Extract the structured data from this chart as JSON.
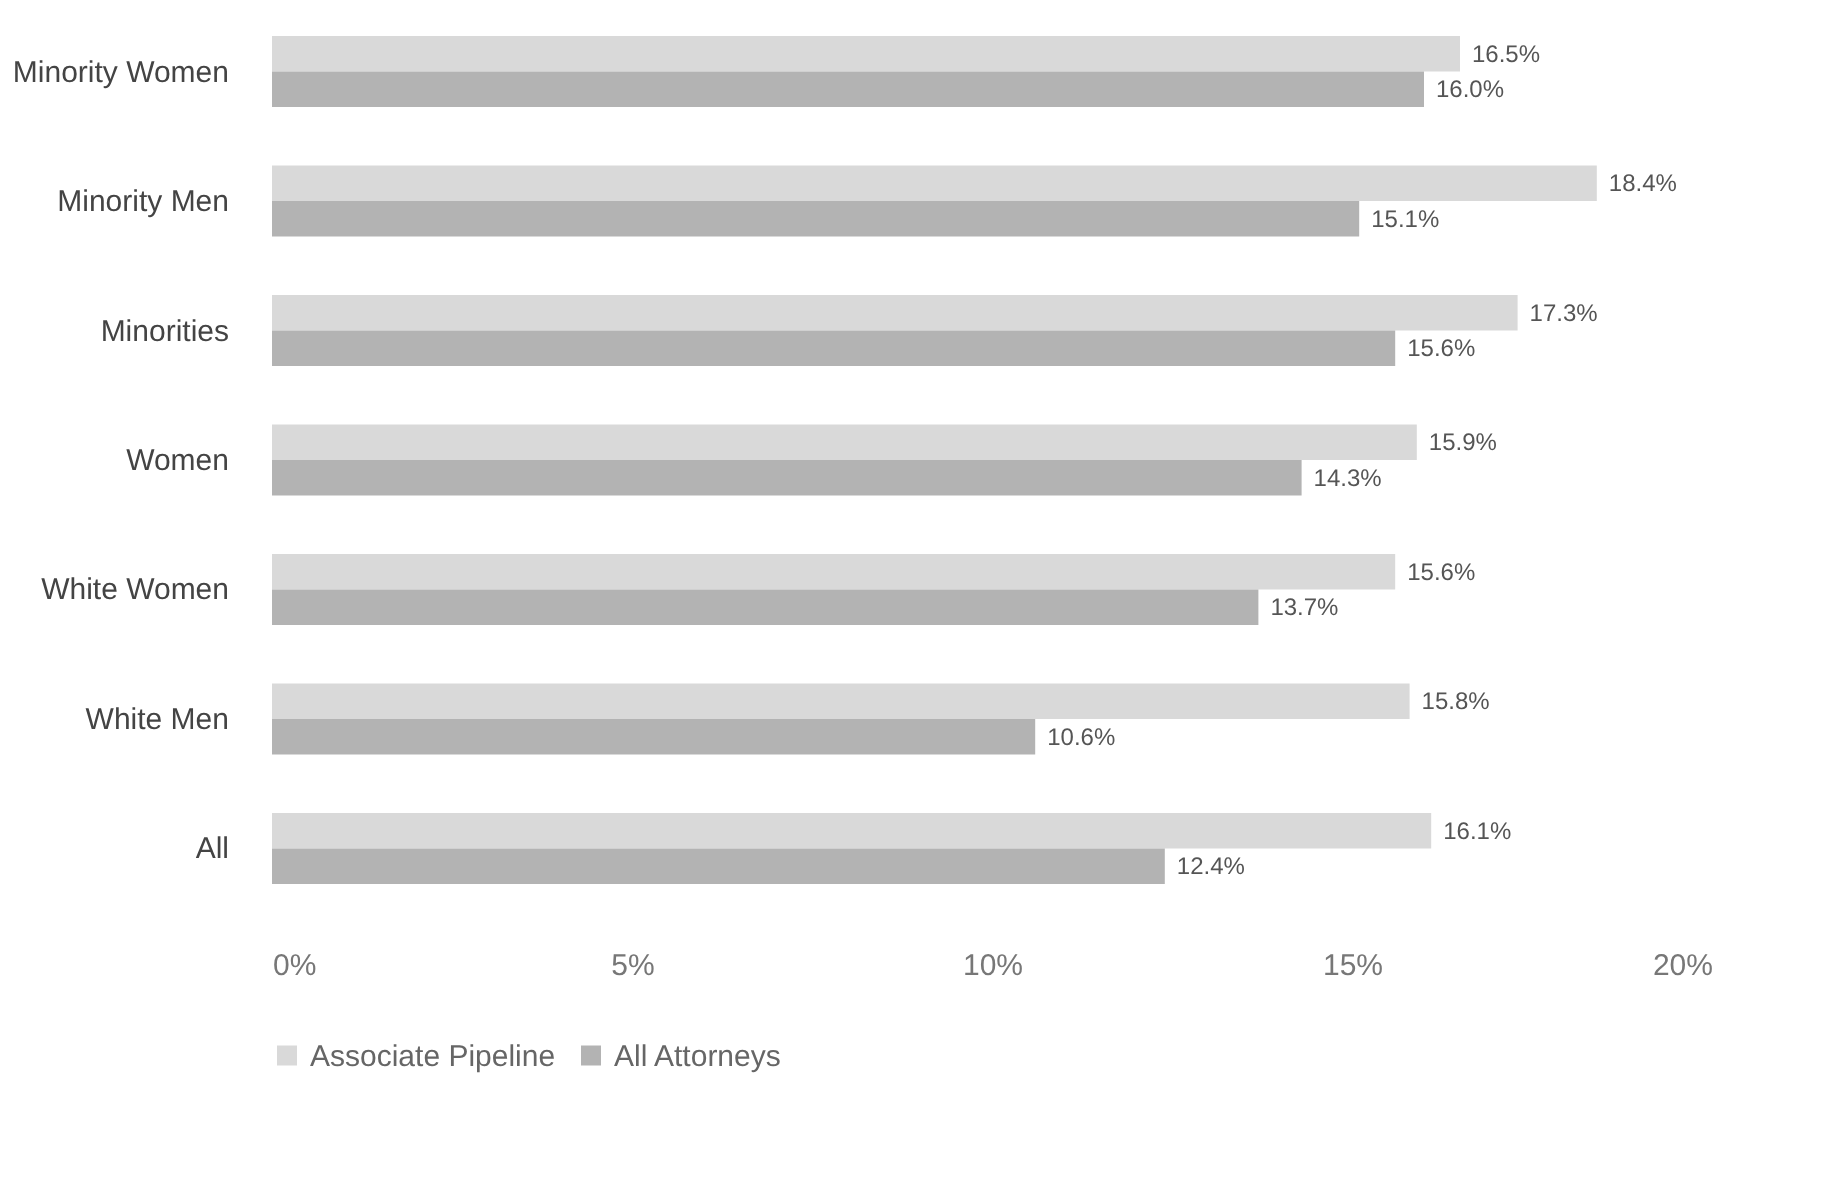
{
  "chart_data": {
    "type": "bar",
    "orientation": "horizontal",
    "categories": [
      "Minority Women",
      "Minority Men",
      "Minorities",
      "Women",
      "White Women",
      "White Men",
      "All"
    ],
    "series": [
      {
        "name": "Associate Pipeline",
        "color": "#d9d9d9",
        "values": [
          16.5,
          18.4,
          17.3,
          15.9,
          15.6,
          15.8,
          16.1
        ],
        "value_labels": [
          "16.5%",
          "18.4%",
          "17.3%",
          "15.9%",
          "15.6%",
          "15.8%",
          "16.1%"
        ]
      },
      {
        "name": "All Attorneys",
        "color": "#b3b3b3",
        "values": [
          16.0,
          15.1,
          15.6,
          14.3,
          13.7,
          10.6,
          12.4
        ],
        "value_labels": [
          "16.0%",
          "15.1%",
          "15.6%",
          "14.3%",
          "13.7%",
          "10.6%",
          "12.4%"
        ]
      }
    ],
    "xlim": [
      0,
      20
    ],
    "xticks": [
      {
        "value": 0,
        "label": "0%"
      },
      {
        "value": 5,
        "label": "5%"
      },
      {
        "value": 10,
        "label": "10%"
      },
      {
        "value": 15,
        "label": "15%"
      },
      {
        "value": 20,
        "label": "20%"
      }
    ],
    "legend": "bottom",
    "grid": false
  }
}
